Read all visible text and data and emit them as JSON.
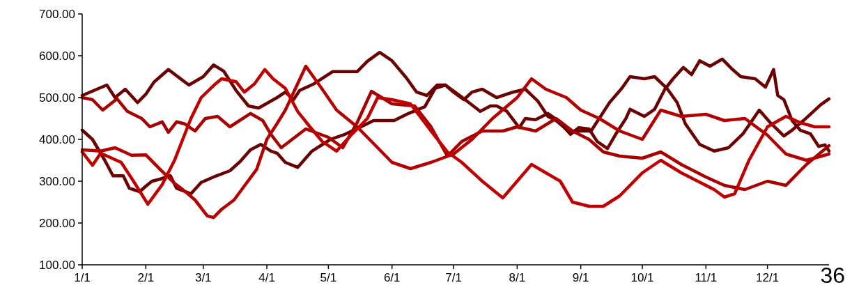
{
  "chart_data": {
    "type": "line",
    "xlim": [
      "--01-01",
      "--12-31"
    ],
    "xticks": [
      {
        "value": "--01-01",
        "label": "1/1"
      },
      {
        "value": "--02-01",
        "label": "2/1"
      },
      {
        "value": "--03-01",
        "label": "3/1"
      },
      {
        "value": "--04-01",
        "label": "4/1"
      },
      {
        "value": "--05-01",
        "label": "5/1"
      },
      {
        "value": "--06-01",
        "label": "6/1"
      },
      {
        "value": "--07-01",
        "label": "7/1"
      },
      {
        "value": "--08-01",
        "label": "8/1"
      },
      {
        "value": "--09-01",
        "label": "9/1"
      },
      {
        "value": "--10-01",
        "label": "10/1"
      },
      {
        "value": "--11-01",
        "label": "11/1"
      },
      {
        "value": "--12-01",
        "label": "12/1"
      }
    ],
    "ylim": [
      100,
      700
    ],
    "yticks": [
      {
        "value": 100,
        "label": "100.00"
      },
      {
        "value": 200,
        "label": "200.00"
      },
      {
        "value": 300,
        "label": "300.00"
      },
      {
        "value": 400,
        "label": "400.00"
      },
      {
        "value": 500,
        "label": "500.00"
      },
      {
        "value": 600,
        "label": "600.00"
      },
      {
        "value": 700,
        "label": "700.00"
      }
    ],
    "grid": false,
    "marker": "none",
    "line_style": "solid",
    "annotations": [
      "36"
    ],
    "series": [
      {
        "color": "#6b0000",
        "x": [
          "--01-01",
          "--01-13",
          "--01-17",
          "--01-22",
          "--01-28",
          "--02-01",
          "--02-05",
          "--02-12",
          "--02-22",
          "--03-01",
          "--03-06",
          "--03-11",
          "--03-17",
          "--03-23",
          "--03-28",
          "--04-06",
          "--04-10",
          "--04-14",
          "--04-17",
          "--04-24",
          "--05-03",
          "--05-15",
          "--05-20",
          "--05-26",
          "--06-01",
          "--06-08",
          "--06-13",
          "--06-18",
          "--06-23",
          "--06-27",
          "--07-01",
          "--07-06",
          "--07-10",
          "--07-15",
          "--07-22",
          "--07-30",
          "--08-05",
          "--08-11",
          "--08-16",
          "--08-20",
          "--08-26",
          "--09-06",
          "--09-10",
          "--09-15",
          "--09-21",
          "--09-25",
          "--10-02",
          "--10-07",
          "--10-13",
          "--10-18",
          "--10-22",
          "--10-29",
          "--11-05",
          "--11-12",
          "--11-19",
          "--11-27",
          "--12-02",
          "--12-09",
          "--12-13",
          "--12-19",
          "--12-27",
          "--12-31"
        ],
        "values": [
          505,
          530,
          500,
          520,
          488,
          508,
          537,
          567,
          530,
          550,
          578,
          563,
          517,
          480,
          475,
          500,
          513,
          495,
          517,
          533,
          562,
          562,
          587,
          608,
          588,
          547,
          513,
          505,
          530,
          530,
          513,
          495,
          513,
          520,
          500,
          513,
          520,
          492,
          455,
          445,
          420,
          420,
          450,
          488,
          522,
          550,
          545,
          550,
          522,
          488,
          437,
          388,
          372,
          380,
          413,
          470,
          442,
          408,
          422,
          447,
          483,
          497
        ]
      },
      {
        "color": "#6b0000",
        "x": [
          "--01-01",
          "--01-06",
          "--01-12",
          "--01-16",
          "--01-21",
          "--01-24",
          "--01-29",
          "--02-01",
          "--02-04",
          "--02-08",
          "--02-13",
          "--02-16",
          "--02-23",
          "--02-28",
          "--03-07",
          "--03-14",
          "--03-19",
          "--03-24",
          "--03-29",
          "--04-03",
          "--04-06",
          "--04-10",
          "--04-16",
          "--04-23",
          "--05-02",
          "--05-09",
          "--05-16",
          "--05-23",
          "--06-02",
          "--06-09",
          "--06-17",
          "--06-22",
          "--06-27",
          "--07-04",
          "--07-14",
          "--07-19",
          "--07-22",
          "--07-27",
          "--08-02",
          "--08-05",
          "--08-10",
          "--08-16",
          "--08-21",
          "--08-27",
          "--08-31",
          "--09-05",
          "--09-09",
          "--09-14",
          "--09-18",
          "--09-23",
          "--09-25",
          "--10-02",
          "--10-07",
          "--10-12",
          "--10-16",
          "--10-21",
          "--10-25",
          "--10-29",
          "--11-03",
          "--11-09",
          "--11-14",
          "--11-18",
          "--11-25",
          "--11-30",
          "--12-04",
          "--12-06",
          "--12-09",
          "--12-13",
          "--12-17",
          "--12-22",
          "--12-26",
          "--12-29",
          "--12-31"
        ],
        "values": [
          422,
          400,
          350,
          313,
          313,
          283,
          275,
          288,
          300,
          305,
          313,
          283,
          270,
          297,
          312,
          325,
          347,
          375,
          388,
          372,
          367,
          345,
          333,
          372,
          400,
          412,
          428,
          445,
          445,
          462,
          478,
          522,
          530,
          505,
          467,
          480,
          480,
          467,
          428,
          450,
          447,
          462,
          445,
          412,
          428,
          425,
          395,
          378,
          412,
          450,
          472,
          455,
          472,
          520,
          545,
          572,
          555,
          588,
          575,
          592,
          567,
          550,
          545,
          525,
          567,
          505,
          495,
          445,
          422,
          413,
          383,
          387,
          372
        ]
      },
      {
        "color": "#a80000",
        "x": [
          "--01-01",
          "--01-06",
          "--01-11",
          "--01-18",
          "--01-23",
          "--01-30",
          "--02-03",
          "--02-09",
          "--02-12",
          "--02-16",
          "--02-20",
          "--02-25",
          "--03-02",
          "--03-08",
          "--03-14",
          "--03-24",
          "--03-30",
          "--04-03",
          "--04-08",
          "--04-12",
          "--04-20",
          "--05-01",
          "--05-08",
          "--05-15",
          "--05-22",
          "--06-01",
          "--06-12",
          "--06-20",
          "--06-28",
          "--07-05",
          "--07-15",
          "--07-25",
          "--08-01",
          "--08-10",
          "--08-20",
          "--08-28",
          "--09-05",
          "--09-12",
          "--09-20",
          "--10-01",
          "--10-10",
          "--10-20",
          "--11-01",
          "--11-10",
          "--11-20",
          "--12-01",
          "--12-10",
          "--12-20",
          "--12-31"
        ],
        "values": [
          500,
          495,
          470,
          497,
          467,
          450,
          430,
          442,
          417,
          442,
          437,
          420,
          450,
          455,
          430,
          462,
          445,
          412,
          380,
          395,
          425,
          405,
          380,
          440,
          515,
          485,
          480,
          430,
          360,
          395,
          420,
          420,
          430,
          420,
          450,
          420,
          400,
          370,
          360,
          355,
          370,
          340,
          310,
          290,
          280,
          300,
          290,
          340,
          385
        ]
      },
      {
        "color": "#b40000",
        "x": [
          "--01-01",
          "--01-10",
          "--01-17",
          "--01-25",
          "--02-01",
          "--02-08",
          "--02-15",
          "--02-21",
          "--02-25",
          "--03-03",
          "--03-06",
          "--03-10",
          "--03-16",
          "--03-22",
          "--03-27",
          "--04-01",
          "--04-06",
          "--04-10",
          "--04-20",
          "--04-28",
          "--05-05",
          "--05-15",
          "--05-25",
          "--06-01",
          "--06-10",
          "--06-20",
          "--07-01",
          "--07-10",
          "--07-20",
          "--08-01",
          "--08-08",
          "--08-15",
          "--08-25",
          "--09-01",
          "--09-10",
          "--09-20",
          "--10-01",
          "--10-10",
          "--10-20",
          "--11-01",
          "--11-10",
          "--11-20",
          "--12-01",
          "--12-10",
          "--12-20",
          "--12-31"
        ],
        "values": [
          375,
          372,
          380,
          362,
          363,
          328,
          295,
          272,
          255,
          217,
          213,
          233,
          255,
          295,
          328,
          400,
          438,
          470,
          575,
          520,
          470,
          430,
          380,
          345,
          330,
          345,
          365,
          400,
          450,
          500,
          545,
          520,
          500,
          470,
          450,
          420,
          400,
          470,
          455,
          460,
          445,
          450,
          410,
          365,
          350,
          365
        ]
      },
      {
        "color": "#c00000",
        "x": [
          "--01-01",
          "--01-06",
          "--01-10",
          "--01-20",
          "--01-26",
          "--02-02",
          "--02-09",
          "--02-15",
          "--02-23",
          "--02-28",
          "--03-07",
          "--03-10",
          "--03-17",
          "--03-21",
          "--03-26",
          "--03-31",
          "--04-04",
          "--04-10",
          "--04-16",
          "--04-22",
          "--04-28",
          "--05-05",
          "--05-12",
          "--05-20",
          "--05-25",
          "--06-01",
          "--06-10",
          "--06-20",
          "--06-28",
          "--07-05",
          "--07-15",
          "--07-25",
          "--08-01",
          "--08-08",
          "--08-15",
          "--08-22",
          "--08-28",
          "--09-05",
          "--09-12",
          "--09-20",
          "--10-01",
          "--10-10",
          "--10-20",
          "--10-28",
          "--11-05",
          "--11-10",
          "--11-15",
          "--11-22",
          "--12-01",
          "--12-10",
          "--12-17",
          "--12-24",
          "--12-31"
        ],
        "values": [
          370,
          338,
          367,
          345,
          300,
          245,
          292,
          350,
          450,
          500,
          533,
          545,
          538,
          513,
          533,
          567,
          545,
          522,
          467,
          430,
          395,
          372,
          410,
          450,
          500,
          495,
          485,
          420,
          370,
          345,
          300,
          260,
          300,
          340,
          320,
          300,
          250,
          240,
          240,
          265,
          320,
          350,
          320,
          300,
          280,
          262,
          270,
          350,
          430,
          455,
          440,
          430,
          430
        ]
      }
    ]
  }
}
